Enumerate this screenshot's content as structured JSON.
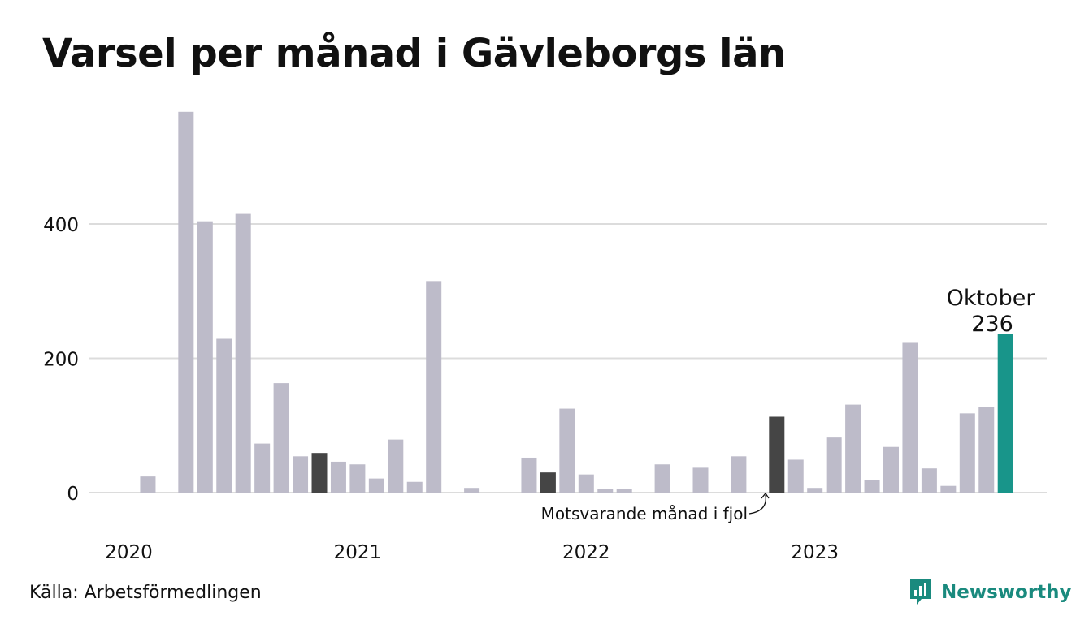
{
  "title": "Varsel per månad i Gävleborgs län",
  "source": "Källa: Arbetsförmedlingen",
  "brand": "Newsworthy",
  "colors": {
    "bar": "#bdbbc9",
    "highlight_prior_year": "#454545",
    "current": "#18958a",
    "grid": "#dcdcdc",
    "brand": "#1a8a7e"
  },
  "annotations": {
    "prior_year_label": "Motsvarande månad i fjol",
    "current_month": "Oktober",
    "current_value": "236"
  },
  "chart_data": {
    "type": "bar",
    "title": "Varsel per månad i Gävleborgs län",
    "xlabel": "",
    "ylabel": "",
    "ylim": [
      0,
      570
    ],
    "y_ticks": [
      0,
      200,
      400
    ],
    "x_tick_labels": [
      {
        "label": "2020",
        "index": 0
      },
      {
        "label": "2021",
        "index": 12
      },
      {
        "label": "2022",
        "index": 24
      },
      {
        "label": "2023",
        "index": 36
      }
    ],
    "grid": true,
    "categories": [
      "2020-01",
      "2020-02",
      "2020-03",
      "2020-04",
      "2020-05",
      "2020-06",
      "2020-07",
      "2020-08",
      "2020-09",
      "2020-10",
      "2020-11",
      "2020-12",
      "2021-01",
      "2021-02",
      "2021-03",
      "2021-04",
      "2021-05",
      "2021-06",
      "2021-07",
      "2021-08",
      "2021-09",
      "2021-10",
      "2021-11",
      "2021-12",
      "2022-01",
      "2022-02",
      "2022-03",
      "2022-04",
      "2022-05",
      "2022-06",
      "2022-07",
      "2022-08",
      "2022-09",
      "2022-10",
      "2022-11",
      "2022-12",
      "2023-01",
      "2023-02",
      "2023-03",
      "2023-04",
      "2023-05",
      "2023-06",
      "2023-07",
      "2023-08",
      "2023-09",
      "2023-10"
    ],
    "values": [
      0,
      24,
      0,
      567,
      404,
      229,
      415,
      73,
      163,
      54,
      59,
      46,
      42,
      21,
      79,
      16,
      315,
      0,
      7,
      0,
      0,
      52,
      30,
      125,
      27,
      5,
      6,
      0,
      42,
      0,
      37,
      0,
      54,
      0,
      113,
      49,
      7,
      82,
      131,
      19,
      68,
      223,
      36,
      10,
      118,
      128
    ],
    "current_index": 46,
    "current_value": 236,
    "prior_year_indices": [
      10,
      22,
      34
    ]
  }
}
